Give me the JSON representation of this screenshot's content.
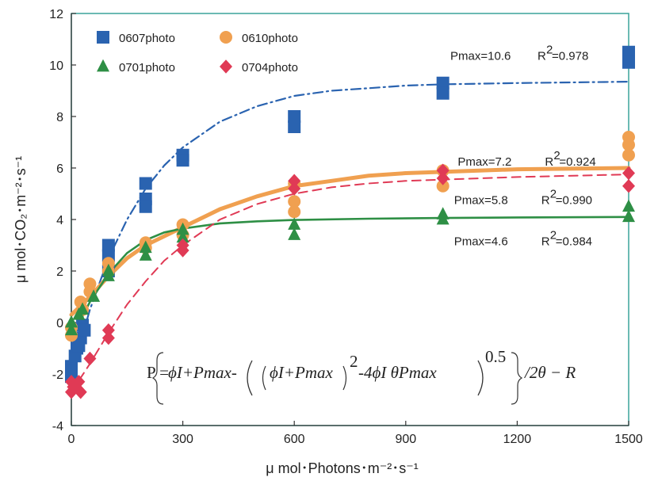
{
  "chart_data": {
    "type": "scatter",
    "xlabel": "μ mol･Photons･m⁻²･s⁻¹",
    "ylabel": "μ mol･CO₂･m⁻²･s⁻¹",
    "xlim": [
      0,
      1500
    ],
    "ylim": [
      -4,
      12
    ],
    "xticks": [
      0,
      300,
      600,
      900,
      1200,
      1500
    ],
    "yticks": [
      -4,
      -2,
      0,
      2,
      4,
      6,
      8,
      10,
      12
    ],
    "grid": false,
    "legend_position": "top-left",
    "series": [
      {
        "name": "0607photo",
        "marker": "square",
        "color": "#2a63b0",
        "points": [
          {
            "x": 0,
            "y": -1.7
          },
          {
            "x": 0,
            "y": -1.9
          },
          {
            "x": 0,
            "y": -2.1
          },
          {
            "x": 10,
            "y": -1.3
          },
          {
            "x": 15,
            "y": -1.0
          },
          {
            "x": 20,
            "y": -0.9
          },
          {
            "x": 25,
            "y": -0.6
          },
          {
            "x": 30,
            "y": -0.1
          },
          {
            "x": 35,
            "y": -0.3
          },
          {
            "x": 100,
            "y": 3.0
          },
          {
            "x": 100,
            "y": 2.6
          },
          {
            "x": 100,
            "y": 2.0
          },
          {
            "x": 200,
            "y": 5.4
          },
          {
            "x": 200,
            "y": 4.8
          },
          {
            "x": 200,
            "y": 4.5
          },
          {
            "x": 300,
            "y": 6.5
          },
          {
            "x": 300,
            "y": 6.3
          },
          {
            "x": 600,
            "y": 8.0
          },
          {
            "x": 600,
            "y": 7.6
          },
          {
            "x": 1000,
            "y": 9.3
          },
          {
            "x": 1000,
            "y": 8.9
          },
          {
            "x": 1500,
            "y": 10.5
          },
          {
            "x": 1500,
            "y": 10.1
          }
        ],
        "fit": [
          [
            0,
            -2.0
          ],
          [
            50,
            0.5
          ],
          [
            100,
            2.5
          ],
          [
            150,
            4.0
          ],
          [
            200,
            5.2
          ],
          [
            250,
            6.1
          ],
          [
            300,
            6.8
          ],
          [
            400,
            7.8
          ],
          [
            500,
            8.4
          ],
          [
            600,
            8.8
          ],
          [
            700,
            9.0
          ],
          [
            800,
            9.1
          ],
          [
            900,
            9.2
          ],
          [
            1000,
            9.25
          ],
          [
            1200,
            9.3
          ],
          [
            1500,
            9.35
          ]
        ]
      },
      {
        "name": "0610photo",
        "marker": "circle",
        "color": "#f0a050",
        "points": [
          {
            "x": 0,
            "y": -0.5
          },
          {
            "x": 0,
            "y": -0.2
          },
          {
            "x": 25,
            "y": 0.8
          },
          {
            "x": 30,
            "y": 0.5
          },
          {
            "x": 50,
            "y": 1.5
          },
          {
            "x": 50,
            "y": 1.2
          },
          {
            "x": 100,
            "y": 2.3
          },
          {
            "x": 100,
            "y": 2.0
          },
          {
            "x": 200,
            "y": 3.1
          },
          {
            "x": 200,
            "y": 2.9
          },
          {
            "x": 300,
            "y": 3.8
          },
          {
            "x": 300,
            "y": 3.4
          },
          {
            "x": 600,
            "y": 4.7
          },
          {
            "x": 600,
            "y": 4.3
          },
          {
            "x": 600,
            "y": 5.4
          },
          {
            "x": 1000,
            "y": 5.9
          },
          {
            "x": 1000,
            "y": 5.3
          },
          {
            "x": 1500,
            "y": 7.2
          },
          {
            "x": 1500,
            "y": 6.9
          },
          {
            "x": 1500,
            "y": 6.5
          }
        ],
        "fit": [
          [
            0,
            0.3
          ],
          [
            50,
            1.0
          ],
          [
            100,
            1.8
          ],
          [
            150,
            2.5
          ],
          [
            200,
            3.0
          ],
          [
            300,
            3.7
          ],
          [
            400,
            4.4
          ],
          [
            500,
            4.9
          ],
          [
            600,
            5.3
          ],
          [
            700,
            5.5
          ],
          [
            800,
            5.7
          ],
          [
            900,
            5.8
          ],
          [
            1000,
            5.85
          ],
          [
            1200,
            5.95
          ],
          [
            1500,
            6.0
          ]
        ]
      },
      {
        "name": "0701photo",
        "marker": "triangle",
        "color": "#2e8f45",
        "points": [
          {
            "x": 0,
            "y": -0.3
          },
          {
            "x": 0,
            "y": 0.0
          },
          {
            "x": 20,
            "y": 0.3
          },
          {
            "x": 30,
            "y": 0.5
          },
          {
            "x": 60,
            "y": 1.0
          },
          {
            "x": 100,
            "y": 2.0
          },
          {
            "x": 100,
            "y": 1.8
          },
          {
            "x": 200,
            "y": 2.9
          },
          {
            "x": 200,
            "y": 2.6
          },
          {
            "x": 300,
            "y": 3.6
          },
          {
            "x": 300,
            "y": 3.3
          },
          {
            "x": 600,
            "y": 3.8
          },
          {
            "x": 600,
            "y": 3.4
          },
          {
            "x": 1000,
            "y": 4.2
          },
          {
            "x": 1000,
            "y": 4.0
          },
          {
            "x": 1500,
            "y": 4.5
          },
          {
            "x": 1500,
            "y": 4.1
          }
        ],
        "fit": [
          [
            0,
            -0.6
          ],
          [
            50,
            0.8
          ],
          [
            100,
            1.9
          ],
          [
            150,
            2.7
          ],
          [
            200,
            3.2
          ],
          [
            250,
            3.5
          ],
          [
            300,
            3.65
          ],
          [
            400,
            3.85
          ],
          [
            500,
            3.93
          ],
          [
            600,
            3.98
          ],
          [
            800,
            4.03
          ],
          [
            1000,
            4.06
          ],
          [
            1200,
            4.08
          ],
          [
            1500,
            4.1
          ]
        ]
      },
      {
        "name": "0704photo",
        "marker": "diamond",
        "color": "#e03a55",
        "points": [
          {
            "x": 0,
            "y": -2.3
          },
          {
            "x": 0,
            "y": -2.7
          },
          {
            "x": 5,
            "y": -2.5
          },
          {
            "x": 20,
            "y": -2.3
          },
          {
            "x": 25,
            "y": -2.7
          },
          {
            "x": 50,
            "y": -1.4
          },
          {
            "x": 100,
            "y": -0.3
          },
          {
            "x": 100,
            "y": -0.6
          },
          {
            "x": 300,
            "y": 3.0
          },
          {
            "x": 300,
            "y": 2.8
          },
          {
            "x": 600,
            "y": 5.5
          },
          {
            "x": 600,
            "y": 5.2
          },
          {
            "x": 1000,
            "y": 5.9
          },
          {
            "x": 1000,
            "y": 5.6
          },
          {
            "x": 1500,
            "y": 5.8
          },
          {
            "x": 1500,
            "y": 5.3
          }
        ],
        "fit": [
          [
            0,
            -2.7
          ],
          [
            50,
            -1.6
          ],
          [
            100,
            -0.4
          ],
          [
            150,
            0.7
          ],
          [
            200,
            1.6
          ],
          [
            250,
            2.4
          ],
          [
            300,
            3.0
          ],
          [
            400,
            4.0
          ],
          [
            500,
            4.6
          ],
          [
            600,
            5.0
          ],
          [
            700,
            5.25
          ],
          [
            800,
            5.4
          ],
          [
            900,
            5.5
          ],
          [
            1000,
            5.55
          ],
          [
            1200,
            5.65
          ],
          [
            1500,
            5.75
          ]
        ]
      }
    ],
    "annotations": [
      {
        "series": "0607photo",
        "pmax": "Pmax=10.6",
        "r2_label": "R",
        "r2_value": "=0.978",
        "x": 1020,
        "y": 10.2
      },
      {
        "series": "0610photo",
        "pmax": "Pmax=7.2",
        "r2_label": "R",
        "r2_value": "=0.924",
        "x": 1040,
        "y": 6.1
      },
      {
        "series": "0704photo",
        "pmax": "Pmax=5.8",
        "r2_label": "R",
        "r2_value": "=0.990",
        "x": 1030,
        "y": 4.6
      },
      {
        "series": "0701photo",
        "pmax": "Pmax=4.6",
        "r2_label": "R",
        "r2_value": "=0.984",
        "x": 1030,
        "y": 3.0
      }
    ],
    "equation": {
      "lhs": "P =",
      "a": "ϕI+Pmax-",
      "b": "ϕI+Pmax",
      "c": "-4ϕI θPmax",
      "exp2": "2",
      "exp05": "0.5",
      "tail": "/2θ − R"
    }
  }
}
